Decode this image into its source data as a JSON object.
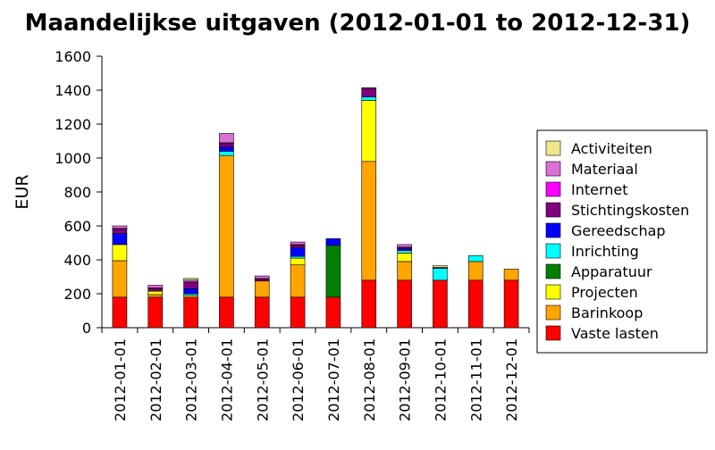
{
  "chart_data": {
    "type": "bar",
    "stacked": true,
    "title": "Maandelijkse uitgaven (2012-01-01 to 2012-12-31)",
    "ylabel": "EUR",
    "xlabel": "",
    "ylim": [
      0,
      1600
    ],
    "yticks": [
      0,
      200,
      400,
      600,
      800,
      1000,
      1200,
      1400,
      1600
    ],
    "grid": false,
    "legend_position": "right",
    "categories": [
      "2012-01-01",
      "2012-02-01",
      "2012-03-01",
      "2012-04-01",
      "2012-05-01",
      "2012-06-01",
      "2012-07-01",
      "2012-08-01",
      "2012-09-01",
      "2012-10-01",
      "2012-11-01",
      "2012-12-01"
    ],
    "series": [
      {
        "name": "Vaste lasten",
        "color": "#ff0000",
        "values": [
          180,
          180,
          180,
          180,
          180,
          180,
          180,
          280,
          280,
          280,
          280,
          280
        ]
      },
      {
        "name": "Barinkoop",
        "color": "#ffa500",
        "values": [
          215,
          15,
          0,
          835,
          95,
          190,
          0,
          700,
          110,
          0,
          110,
          65
        ]
      },
      {
        "name": "Projecten",
        "color": "#ffff00",
        "values": [
          95,
          20,
          10,
          0,
          0,
          40,
          0,
          360,
          50,
          0,
          0,
          0
        ]
      },
      {
        "name": "Apparatuur",
        "color": "#008000",
        "values": [
          0,
          0,
          0,
          0,
          0,
          0,
          305,
          0,
          0,
          0,
          0,
          0
        ]
      },
      {
        "name": "Inrichting",
        "color": "#00ffff",
        "values": [
          0,
          0,
          10,
          25,
          0,
          10,
          0,
          20,
          15,
          70,
          35,
          0
        ]
      },
      {
        "name": "Gereedschap",
        "color": "#0000ff",
        "values": [
          65,
          0,
          30,
          25,
          0,
          50,
          40,
          0,
          10,
          5,
          0,
          0
        ]
      },
      {
        "name": "Stichtingskosten",
        "color": "#800080",
        "values": [
          25,
          15,
          35,
          20,
          10,
          15,
          0,
          50,
          5,
          0,
          0,
          0
        ]
      },
      {
        "name": "Internet",
        "color": "#ff00ff",
        "values": [
          5,
          5,
          5,
          5,
          5,
          5,
          0,
          5,
          5,
          0,
          0,
          0
        ]
      },
      {
        "name": "Materiaal",
        "color": "#da70d6",
        "values": [
          15,
          15,
          10,
          55,
          15,
          15,
          0,
          0,
          15,
          0,
          0,
          0
        ]
      },
      {
        "name": "Activiteiten",
        "color": "#f0e68c",
        "values": [
          0,
          0,
          10,
          0,
          0,
          0,
          0,
          0,
          0,
          10,
          0,
          0
        ]
      }
    ],
    "legend_order": [
      "Activiteiten",
      "Materiaal",
      "Internet",
      "Stichtingskosten",
      "Gereedschap",
      "Inrichting",
      "Apparatuur",
      "Projecten",
      "Barinkoop",
      "Vaste lasten"
    ]
  }
}
